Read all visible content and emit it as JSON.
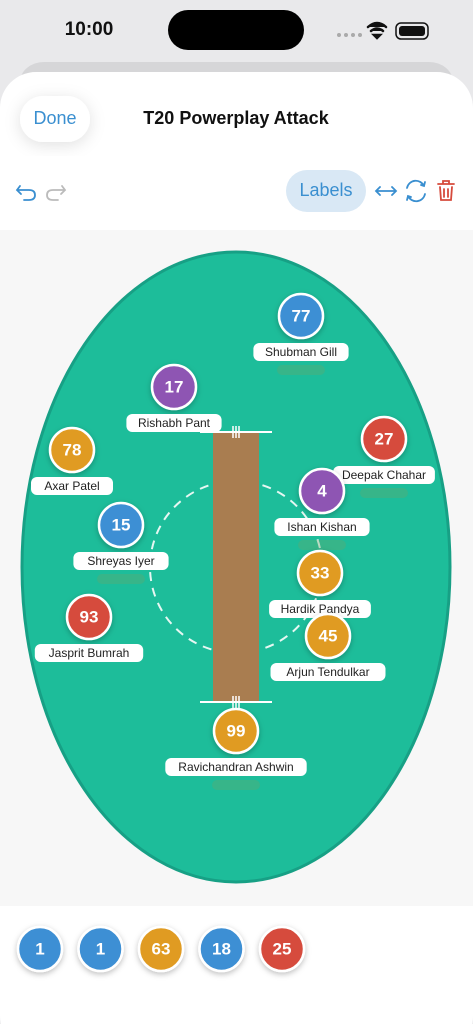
{
  "status_bar": {
    "time": "10:00"
  },
  "header": {
    "done": "Done",
    "title": "T20 Powerplay Attack"
  },
  "toolbar": {
    "labels": "Labels"
  },
  "players": [
    {
      "number": 77,
      "name": "Shubman Gill",
      "color": "#3d8fd4"
    },
    {
      "number": 17,
      "name": "Rishabh Pant",
      "color": "#8e55b3"
    },
    {
      "number": 78,
      "name": "Axar Patel",
      "color": "#e09b20"
    },
    {
      "number": 27,
      "name": "Deepak Chahar",
      "color": "#d64b3d"
    },
    {
      "number": 4,
      "name": "Ishan Kishan",
      "color": "#8e55b3"
    },
    {
      "number": 15,
      "name": "Shreyas Iyer",
      "color": "#3d8fd4"
    },
    {
      "number": 33,
      "name": "Hardik Pandya",
      "color": "#e09b20"
    },
    {
      "number": 45,
      "name": "Arjun Tendulkar",
      "color": "#e09b20"
    },
    {
      "number": 93,
      "name": "Jasprit Bumrah",
      "color": "#d64b3d"
    },
    {
      "number": 99,
      "name": "Ravichandran Ashwin",
      "color": "#e09b20"
    }
  ],
  "bench": [
    {
      "number": 1,
      "color": "#3d8fd4"
    },
    {
      "number": 1,
      "color": "#3d8fd4"
    },
    {
      "number": 63,
      "color": "#e09b20"
    },
    {
      "number": 18,
      "color": "#3d8fd4"
    },
    {
      "number": 25,
      "color": "#d64b3d"
    }
  ]
}
